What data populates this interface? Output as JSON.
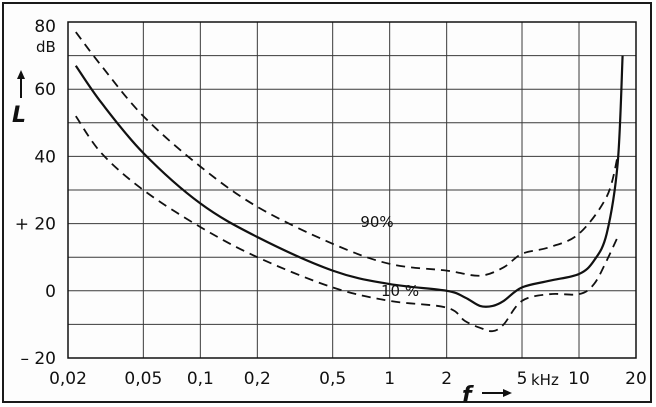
{
  "chart_data": {
    "type": "line",
    "xlabel": "f",
    "ylabel": "L",
    "yunit": "dB",
    "xunit": "kHz",
    "x_scale": "log",
    "xlim": [
      0.02,
      20
    ],
    "ylim": [
      -20,
      80
    ],
    "grid": true,
    "x_ticks": [
      {
        "value": 0.02,
        "label": "0,02"
      },
      {
        "value": 0.05,
        "label": "0,05"
      },
      {
        "value": 0.1,
        "label": "0,1"
      },
      {
        "value": 0.2,
        "label": "0,2"
      },
      {
        "value": 0.5,
        "label": "0,5"
      },
      {
        "value": 1,
        "label": "1"
      },
      {
        "value": 2,
        "label": "2"
      },
      {
        "value": 5,
        "label": "5"
      },
      {
        "value": 10,
        "label": "10"
      },
      {
        "value": 20,
        "label": "20"
      }
    ],
    "y_ticks": [
      {
        "value": -20,
        "label": "– 20"
      },
      {
        "value": 0,
        "label": "0"
      },
      {
        "value": 20,
        "label": "+ 20"
      },
      {
        "value": 40,
        "label": "40"
      },
      {
        "value": 60,
        "label": "60"
      },
      {
        "value": 80,
        "label": "80"
      }
    ],
    "series": [
      {
        "name": "90%",
        "style": "dashed",
        "x": [
          0.022,
          0.03,
          0.05,
          0.1,
          0.2,
          0.5,
          1,
          2,
          3,
          4,
          5,
          7,
          10,
          14,
          16
        ],
        "y": [
          77,
          67,
          52,
          37,
          25,
          14,
          8,
          6,
          4.5,
          7,
          11,
          13,
          17,
          28,
          40
        ]
      },
      {
        "name": "",
        "style": "solid",
        "x": [
          0.022,
          0.03,
          0.05,
          0.1,
          0.2,
          0.5,
          1,
          2,
          2.5,
          3,
          3.5,
          4,
          5,
          7,
          10,
          12,
          14,
          16,
          17
        ],
        "y": [
          67,
          56,
          41,
          26,
          16,
          6,
          2,
          0,
          -2,
          -4.5,
          -4.5,
          -3,
          1,
          3,
          5,
          9,
          17,
          38,
          70
        ]
      },
      {
        "name": "10%",
        "style": "dashed",
        "x": [
          0.022,
          0.03,
          0.05,
          0.1,
          0.2,
          0.5,
          1,
          2,
          2.5,
          3,
          3.5,
          4,
          5,
          7,
          10,
          12,
          14,
          16
        ],
        "y": [
          52,
          41,
          30,
          19,
          10,
          1,
          -3,
          -5,
          -9,
          -11,
          -12,
          -10,
          -3,
          -1,
          -1,
          2,
          9,
          16
        ]
      }
    ],
    "annotations": [
      {
        "text": "90%",
        "x": 0.7,
        "y": 19
      },
      {
        "text": "10 %",
        "x": 0.9,
        "y": -1.5
      }
    ],
    "colors": {
      "line": "#111111",
      "grid": "#3a3a3a"
    }
  }
}
